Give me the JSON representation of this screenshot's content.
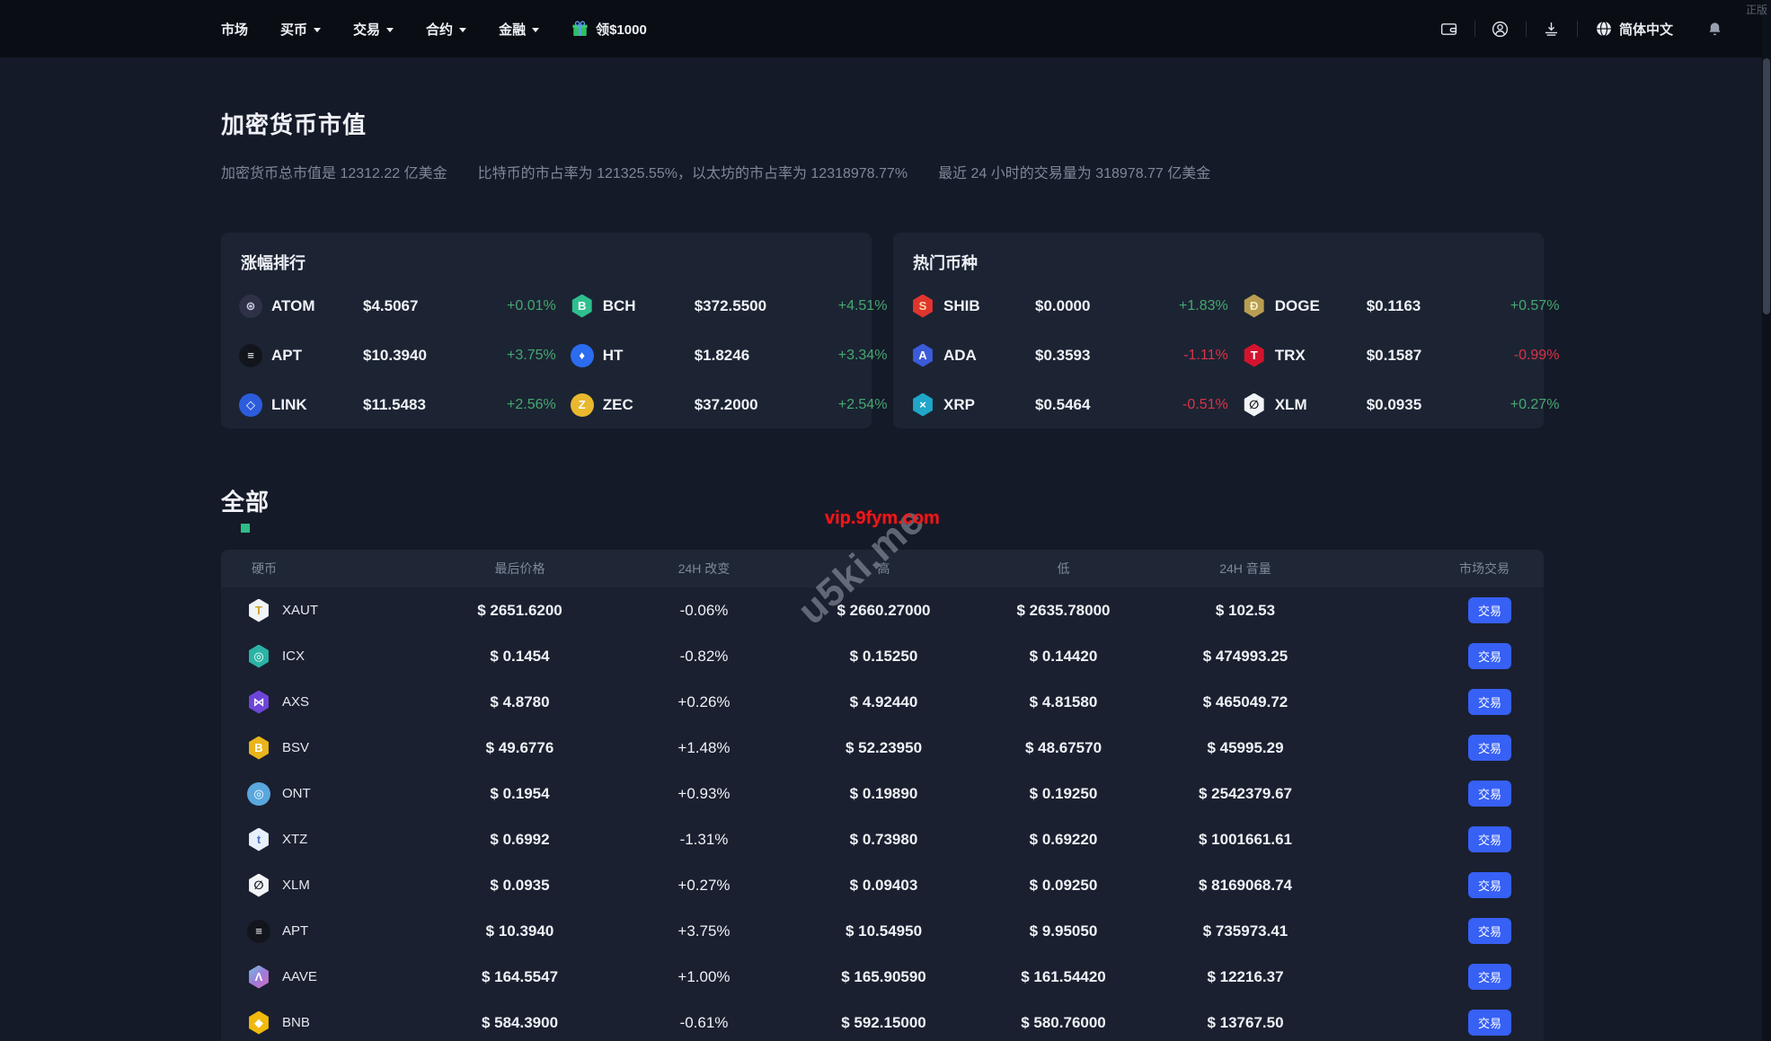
{
  "navbar": {
    "items": [
      {
        "label": "市场",
        "caret": false
      },
      {
        "label": "买币",
        "caret": true
      },
      {
        "label": "交易",
        "caret": true
      },
      {
        "label": "合约",
        "caret": true
      },
      {
        "label": "金融",
        "caret": true
      }
    ],
    "bonus_label": "领$1000",
    "language": "简体中文",
    "corner_tag": "正版"
  },
  "hero": {
    "title": "加密货币市值",
    "stats": [
      "加密货币总市值是 12312.22 亿美金",
      "比特币的市占率为 121325.55%，以太坊的市占率为 12318978.77%",
      "最近 24 小时的交易量为 318978.77 亿美金"
    ]
  },
  "cards": [
    {
      "title": "涨幅排行",
      "entries": [
        {
          "symbol": "ATOM",
          "price": "$4.5067",
          "change": "+0.01%",
          "dir": "up",
          "icon": {
            "glyph": "⊛",
            "bg": "#2e3148",
            "fg": "#ccd2ea",
            "shape": "circle"
          }
        },
        {
          "symbol": "BCH",
          "price": "$372.5500",
          "change": "+4.51%",
          "dir": "up",
          "icon": {
            "glyph": "B",
            "bg": "#2fbf8f",
            "fg": "#ffffff",
            "shape": "hex"
          }
        },
        {
          "symbol": "APT",
          "price": "$10.3940",
          "change": "+3.75%",
          "dir": "up",
          "icon": {
            "glyph": "≡",
            "bg": "#13151d",
            "fg": "#ffffff",
            "shape": "circle"
          }
        },
        {
          "symbol": "HT",
          "price": "$1.8246",
          "change": "+3.34%",
          "dir": "up",
          "icon": {
            "glyph": "♦",
            "bg": "#2b6cf0",
            "fg": "#ffffff",
            "shape": "circle"
          }
        },
        {
          "symbol": "LINK",
          "price": "$11.5483",
          "change": "+2.56%",
          "dir": "up",
          "icon": {
            "glyph": "◇",
            "bg": "#2c5cdc",
            "fg": "#ffffff",
            "shape": "circle"
          }
        },
        {
          "symbol": "ZEC",
          "price": "$37.2000",
          "change": "+2.54%",
          "dir": "up",
          "icon": {
            "glyph": "Z",
            "bg": "#e9b82f",
            "fg": "#ffffff",
            "shape": "circle"
          }
        }
      ]
    },
    {
      "title": "热门币种",
      "entries": [
        {
          "symbol": "SHIB",
          "price": "$0.0000",
          "change": "+1.83%",
          "dir": "up",
          "icon": {
            "glyph": "S",
            "bg": "#e0352f",
            "fg": "#ffd9a0",
            "shape": "hex"
          }
        },
        {
          "symbol": "DOGE",
          "price": "$0.1163",
          "change": "+0.57%",
          "dir": "up",
          "icon": {
            "glyph": "Ð",
            "bg": "#b99e52",
            "fg": "#f5eec8",
            "shape": "hex"
          }
        },
        {
          "symbol": "ADA",
          "price": "$0.3593",
          "change": "-1.11%",
          "dir": "down",
          "icon": {
            "glyph": "A",
            "bg": "#3b5bd9",
            "fg": "#ffffff",
            "shape": "hex"
          }
        },
        {
          "symbol": "TRX",
          "price": "$0.1587",
          "change": "-0.99%",
          "dir": "down",
          "icon": {
            "glyph": "T",
            "bg": "#d4142e",
            "fg": "#ffffff",
            "shape": "hex"
          }
        },
        {
          "symbol": "XRP",
          "price": "$0.5464",
          "change": "-0.51%",
          "dir": "down",
          "icon": {
            "glyph": "×",
            "bg": "#1fa6c9",
            "fg": "#ffffff",
            "shape": "hex"
          }
        },
        {
          "symbol": "XLM",
          "price": "$0.0935",
          "change": "+0.27%",
          "dir": "up",
          "icon": {
            "glyph": "∅",
            "bg": "#f2f4f8",
            "fg": "#171b24",
            "shape": "hex"
          }
        }
      ]
    }
  ],
  "all_section": {
    "title": "全部",
    "table": {
      "headers": [
        "硬币",
        "最后价格",
        "24H 改变",
        "高",
        "低",
        "24H 音量",
        "市场交易"
      ],
      "trade_label": "交易",
      "rows": [
        {
          "symbol": "XAUT",
          "price": "$ 2651.6200",
          "change": "-0.06%",
          "dir": "down",
          "high": "$ 2660.27000",
          "low": "$ 2635.78000",
          "volume": "$ 102.53",
          "icon": {
            "glyph": "T",
            "bg": "#f2f4f8",
            "fg": "#cfa22e",
            "shape": "hex"
          }
        },
        {
          "symbol": "ICX",
          "price": "$ 0.1454",
          "change": "-0.82%",
          "dir": "down",
          "high": "$ 0.15250",
          "low": "$ 0.14420",
          "volume": "$ 474993.25",
          "icon": {
            "glyph": "◎",
            "bg": "#2bb3a5",
            "fg": "#ffffff",
            "shape": "hex"
          }
        },
        {
          "symbol": "AXS",
          "price": "$ 4.8780",
          "change": "+0.26%",
          "dir": "up",
          "high": "$ 4.92440",
          "low": "$ 4.81580",
          "volume": "$ 465049.72",
          "icon": {
            "glyph": "⋈",
            "bg": "#6e45d9",
            "fg": "#ffffff",
            "shape": "hex"
          }
        },
        {
          "symbol": "BSV",
          "price": "$ 49.6776",
          "change": "+1.48%",
          "dir": "up",
          "high": "$ 52.23950",
          "low": "$ 48.67570",
          "volume": "$ 45995.29",
          "icon": {
            "glyph": "B",
            "bg": "#eab41c",
            "fg": "#ffffff",
            "shape": "hex"
          }
        },
        {
          "symbol": "ONT",
          "price": "$ 0.1954",
          "change": "+0.93%",
          "dir": "up",
          "high": "$ 0.19890",
          "low": "$ 0.19250",
          "volume": "$ 2542379.67",
          "icon": {
            "glyph": "◎",
            "bg": "#5aa7de",
            "fg": "#ffffff",
            "shape": "circle"
          }
        },
        {
          "symbol": "XTZ",
          "price": "$ 0.6992",
          "change": "-1.31%",
          "dir": "down",
          "high": "$ 0.73980",
          "low": "$ 0.69220",
          "volume": "$ 1001661.61",
          "icon": {
            "glyph": "t",
            "bg": "#e8f0fb",
            "fg": "#4a77c9",
            "shape": "hex"
          }
        },
        {
          "symbol": "XLM",
          "price": "$ 0.0935",
          "change": "+0.27%",
          "dir": "up",
          "high": "$ 0.09403",
          "low": "$ 0.09250",
          "volume": "$ 8169068.74",
          "icon": {
            "glyph": "∅",
            "bg": "#f2f4f8",
            "fg": "#171b24",
            "shape": "hex"
          }
        },
        {
          "symbol": "APT",
          "price": "$ 10.3940",
          "change": "+3.75%",
          "dir": "up",
          "high": "$ 10.54950",
          "low": "$ 9.95050",
          "volume": "$ 735973.41",
          "icon": {
            "glyph": "≡",
            "bg": "#13151d",
            "fg": "#ffffff",
            "shape": "circle"
          }
        },
        {
          "symbol": "AAVE",
          "price": "$ 164.5547",
          "change": "+1.00%",
          "dir": "up",
          "high": "$ 165.90590",
          "low": "$ 161.54420",
          "volume": "$ 12216.37",
          "icon": {
            "glyph": "Λ",
            "bg": "linear-gradient(135deg,#6fc5d8,#9d7bdc,#d66bb5)",
            "fg": "#ffffff",
            "shape": "hex"
          }
        },
        {
          "symbol": "BNB",
          "price": "$ 584.3900",
          "change": "-0.61%",
          "dir": "down",
          "high": "$ 592.15000",
          "low": "$ 580.76000",
          "volume": "$ 13767.50",
          "icon": {
            "glyph": "◆",
            "bg": "#f0b90b",
            "fg": "#ffffff",
            "shape": "hex"
          }
        }
      ]
    }
  },
  "watermarks": {
    "red": "vip.9fym.com",
    "diagonal": "u5ki.me"
  },
  "colors": {
    "up_green": "#45a871",
    "down_red": "#dd3247",
    "accent_blue": "#3760f5",
    "accent_green_square": "#2ebd85",
    "navbar_bg": "#0a0d14",
    "page_bg": "#141a28",
    "card_bg": "#1c2433"
  }
}
